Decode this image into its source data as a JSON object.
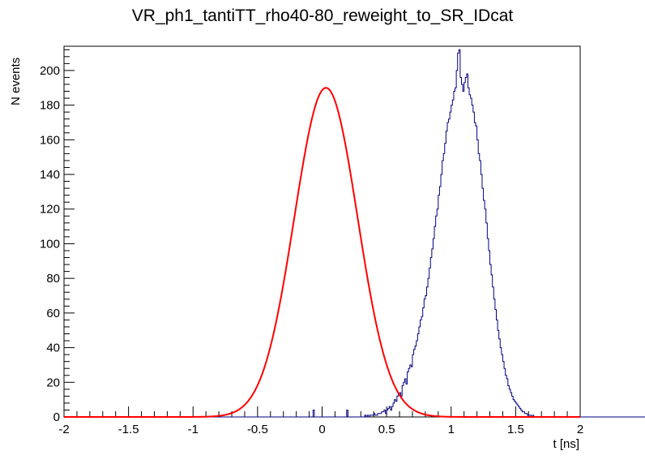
{
  "chart_data": {
    "type": "histogram",
    "title": "VR_ph1_tantiTT_rho40-80_reweight_to_SR_IDcat",
    "xlabel": "t [ns]",
    "ylabel": "N events",
    "xlim": [
      -2,
      2
    ],
    "ylim": [
      0,
      214
    ],
    "x_ticks": [
      "-2",
      "-1.5",
      "-1",
      "-0.5",
      "0",
      "0.5",
      "1",
      "1.5",
      "2"
    ],
    "y_ticks": [
      "0",
      "20",
      "40",
      "60",
      "80",
      "100",
      "120",
      "140",
      "160",
      "180",
      "200"
    ],
    "grid": false,
    "histogram": {
      "name": "data",
      "color": "#000080",
      "bin_width": 0.01,
      "x_start": -2.0,
      "counts": [
        0,
        0,
        0,
        0,
        0,
        0,
        0,
        0,
        0,
        0,
        0,
        0,
        0,
        0,
        0,
        0,
        0,
        0,
        0,
        0,
        0,
        0,
        0,
        0,
        0,
        0,
        0,
        0,
        0,
        0,
        0,
        0,
        0,
        0,
        0,
        0,
        0,
        0,
        0,
        0,
        0,
        0,
        0,
        0,
        0,
        0,
        0,
        0,
        0,
        0,
        0,
        0,
        0,
        0,
        0,
        0,
        0,
        0,
        0,
        0,
        0,
        0,
        0,
        0,
        0,
        0,
        0,
        0,
        0,
        0,
        0,
        0,
        0,
        0,
        0,
        0,
        0,
        0,
        0,
        0,
        0,
        0,
        0,
        0,
        0,
        0,
        0,
        0,
        0,
        0,
        0,
        0,
        0,
        0,
        0,
        0,
        0,
        0,
        0,
        0,
        0,
        0,
        0,
        0,
        0,
        0,
        0,
        0,
        0,
        0,
        0,
        0,
        0,
        0,
        0,
        0,
        0,
        0,
        0,
        0,
        0,
        0,
        0,
        0,
        0,
        0,
        0,
        0,
        0,
        0,
        0,
        0,
        0,
        0,
        0,
        0,
        0,
        0,
        0,
        0,
        0,
        0,
        0,
        0,
        0,
        0,
        0,
        0,
        0,
        0,
        0,
        0,
        0,
        0,
        0,
        0,
        0,
        0,
        0,
        0,
        0,
        0,
        0,
        0,
        0,
        0,
        0,
        0,
        0,
        0,
        0,
        0,
        0,
        0,
        0,
        0,
        0,
        0,
        0,
        0,
        0,
        0,
        0,
        0,
        0,
        0,
        0,
        0,
        0,
        0,
        0,
        0,
        0,
        4,
        0,
        0,
        0,
        0,
        0,
        0,
        0,
        0,
        0,
        0,
        0,
        0,
        0,
        0,
        0,
        0,
        0,
        0,
        0,
        0,
        0,
        0,
        0,
        0,
        0,
        4,
        0,
        0,
        0,
        0,
        0,
        0,
        0,
        0,
        0,
        0,
        0,
        0,
        0,
        1,
        0,
        1,
        0,
        1,
        1,
        1,
        2,
        1,
        1,
        2,
        2,
        2,
        3,
        3,
        4,
        2,
        4,
        5,
        6,
        4,
        6,
        8,
        10,
        9,
        12,
        13,
        14,
        12,
        18,
        20,
        22,
        19,
        26,
        28,
        30,
        29,
        36,
        39,
        41,
        44,
        48,
        52,
        56,
        58,
        63,
        68,
        70,
        75,
        80,
        86,
        92,
        97,
        103,
        110,
        116,
        120,
        128,
        133,
        140,
        148,
        152,
        158,
        165,
        170,
        172,
        176,
        180,
        183,
        188,
        190,
        200,
        210,
        212,
        196,
        192,
        188,
        193,
        196,
        198,
        190,
        186,
        184,
        180,
        176,
        170,
        168,
        160,
        152,
        148,
        140,
        132,
        125,
        120,
        112,
        103,
        96,
        88,
        82,
        75,
        68,
        62,
        56,
        50,
        45,
        40,
        36,
        32,
        28,
        24,
        22,
        18,
        16,
        14,
        12,
        10,
        9,
        8,
        7,
        6,
        5,
        4,
        3,
        3,
        2,
        2,
        1,
        1,
        1,
        0,
        1,
        0,
        0,
        0,
        0,
        0,
        0,
        0,
        0,
        0,
        0,
        0,
        0,
        0,
        0,
        0,
        0,
        0,
        0,
        0,
        0,
        0,
        0,
        0,
        0,
        0,
        0,
        0,
        0,
        0,
        0,
        0,
        0,
        0,
        0,
        0,
        0,
        0,
        0,
        0,
        0,
        0,
        0,
        0,
        0,
        0,
        0,
        0,
        0,
        0,
        0,
        0,
        0,
        0,
        0,
        0,
        0,
        0,
        0,
        0,
        0,
        0,
        0,
        0,
        0,
        0,
        0,
        0,
        0,
        0,
        0,
        0,
        0,
        0,
        0,
        0,
        0,
        0,
        0,
        0,
        0,
        0,
        0,
        0,
        0,
        0,
        0,
        0,
        0,
        0,
        0,
        0,
        0,
        0,
        0,
        0,
        0,
        0,
        0,
        0,
        0,
        0,
        0,
        0,
        0,
        0,
        0,
        0,
        0,
        0,
        0,
        0,
        0,
        0,
        0,
        0,
        0,
        0,
        0,
        0,
        0,
        0
      ]
    },
    "fit": {
      "name": "gaussian fit",
      "color": "#ff0000",
      "amplitude": 190,
      "mean": 0.03,
      "sigma": 0.245
    }
  }
}
